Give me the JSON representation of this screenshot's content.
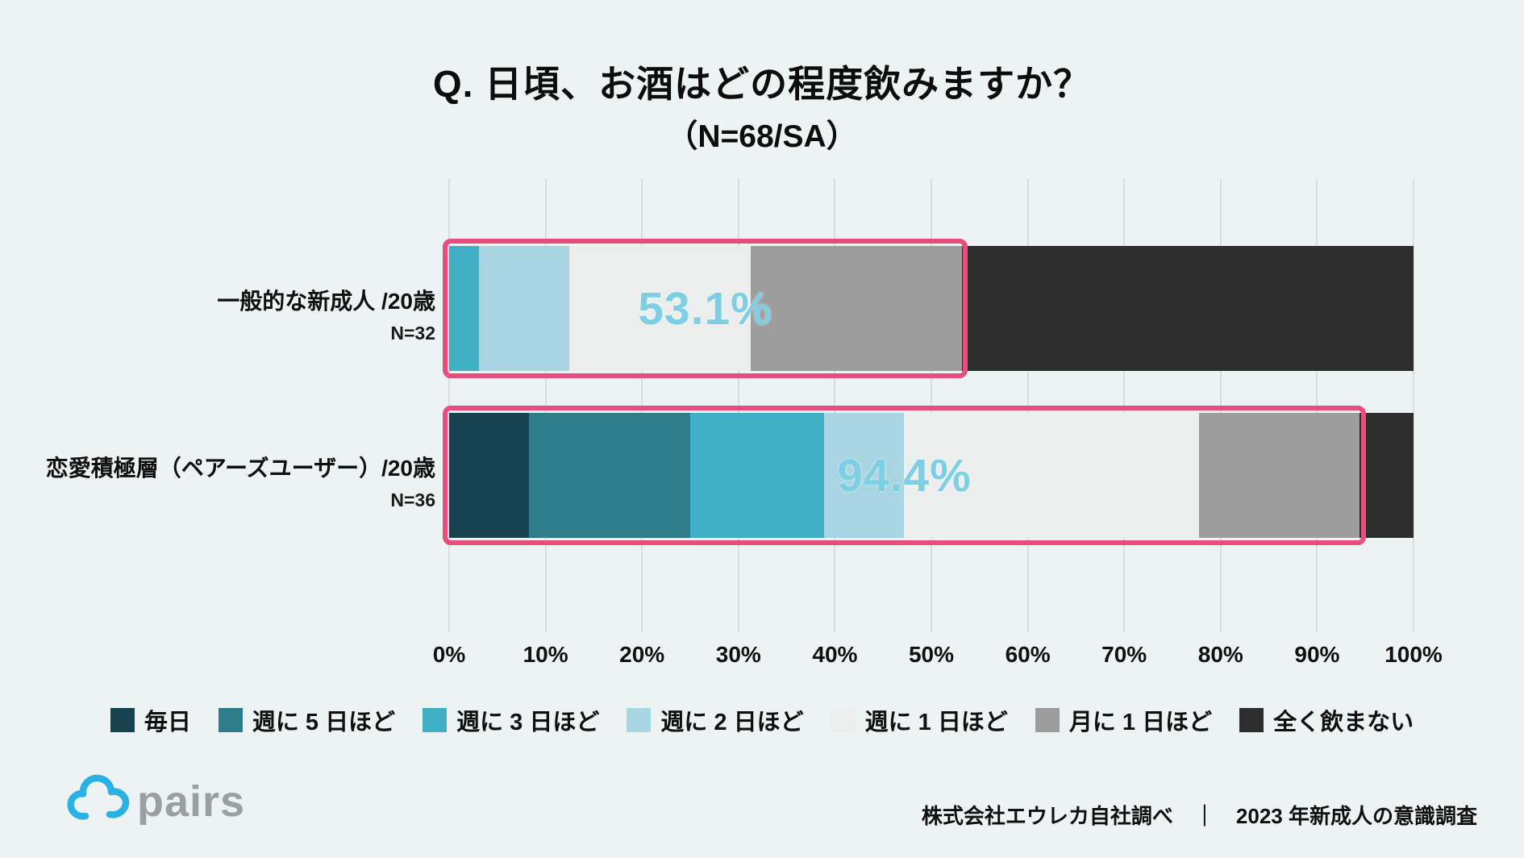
{
  "page": {
    "title": "Q. 日頃、お酒はどの程度飲みますか？",
    "subtitle": "（N=68/SA）"
  },
  "colors": {
    "background": "#edf3f3",
    "gridline": "#d7dddd",
    "highlight_border": "#e84d7d",
    "highlight_label_text": "#7ecfe4",
    "logo_blue": "#29b1e6",
    "logo_gray": "#9aa0a0"
  },
  "chart_data": {
    "type": "bar",
    "variant": "horizontal-stacked",
    "title": "Q. 日頃、お酒はどの程度飲みますか？",
    "subtitle": "（N=68/SA）",
    "x_axis": {
      "min": 0,
      "max": 100,
      "tick_step": 10,
      "tick_labels": [
        "0%",
        "10%",
        "20%",
        "30%",
        "40%",
        "50%",
        "60%",
        "70%",
        "80%",
        "90%",
        "100%"
      ]
    },
    "grid": true,
    "legend_position": "bottom",
    "categories": [
      {
        "name": "毎日",
        "color": "#17414c"
      },
      {
        "name": "週に 5 日ほど",
        "color": "#2e7b8c"
      },
      {
        "name": "週に 3 日ほど",
        "color": "#41afc6"
      },
      {
        "name": "週に 2 日ほど",
        "color": "#a9d5e2"
      },
      {
        "name": "週に 1 日ほど",
        "color": "#ebeeed"
      },
      {
        "name": "月に 1 日ほど",
        "color": "#9d9d9d"
      },
      {
        "name": "全く飲まない",
        "color": "#2d2d2d"
      }
    ],
    "rows": [
      {
        "label": "一般的な新成人 /20歳",
        "n_label": "N=32",
        "values": [
          0,
          0,
          3.1,
          9.4,
          18.8,
          21.9,
          46.9
        ],
        "highlight": {
          "from": 0,
          "to": 53.1,
          "label": "53.1%"
        }
      },
      {
        "label": "恋愛積極層（ペアーズユーザー）/20歳",
        "n_label": "N=36",
        "values": [
          8.3,
          16.7,
          13.9,
          8.3,
          30.6,
          16.7,
          5.6
        ],
        "highlight": {
          "from": 0,
          "to": 94.4,
          "label": "94.4%"
        }
      }
    ]
  },
  "footer": {
    "logo_text": "pairs",
    "source_left": "株式会社エウレカ自社調べ",
    "separator": "｜",
    "source_right": "2023 年新成人の意識調査"
  }
}
